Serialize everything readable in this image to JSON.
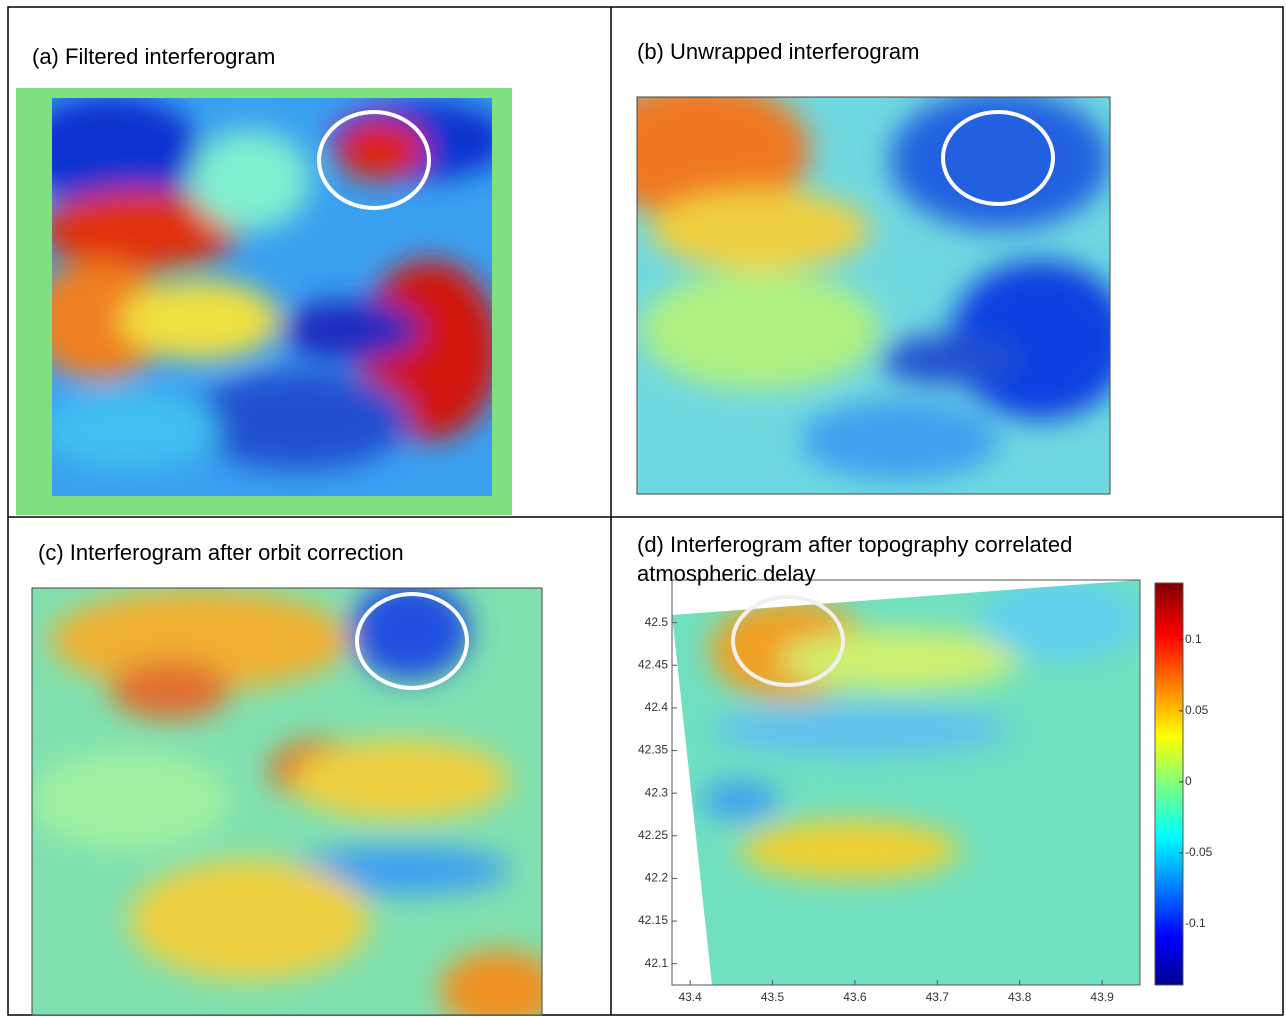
{
  "panels": [
    {
      "caption": "(a) Filtered interferogram"
    },
    {
      "caption": "(b) Unwrapped interferogram"
    },
    {
      "caption": "(c) Interferogram after orbit correction"
    },
    {
      "caption": "(d) Interferogram after topography correlated atmospheric delay",
      "xlim": [
        43.378,
        43.946
      ],
      "xticks": [
        43.4,
        43.5,
        43.6,
        43.7,
        43.8,
        43.9
      ],
      "ylim": [
        42.075,
        42.55
      ],
      "yticks": [
        42.1,
        42.15,
        42.2,
        42.25,
        42.3,
        42.35,
        42.4,
        42.45,
        42.5
      ],
      "colorbar": {
        "lim": [
          -0.143,
          0.14
        ],
        "ticks": [
          -0.1,
          -0.05,
          0,
          0.05,
          0.1
        ]
      }
    }
  ]
}
